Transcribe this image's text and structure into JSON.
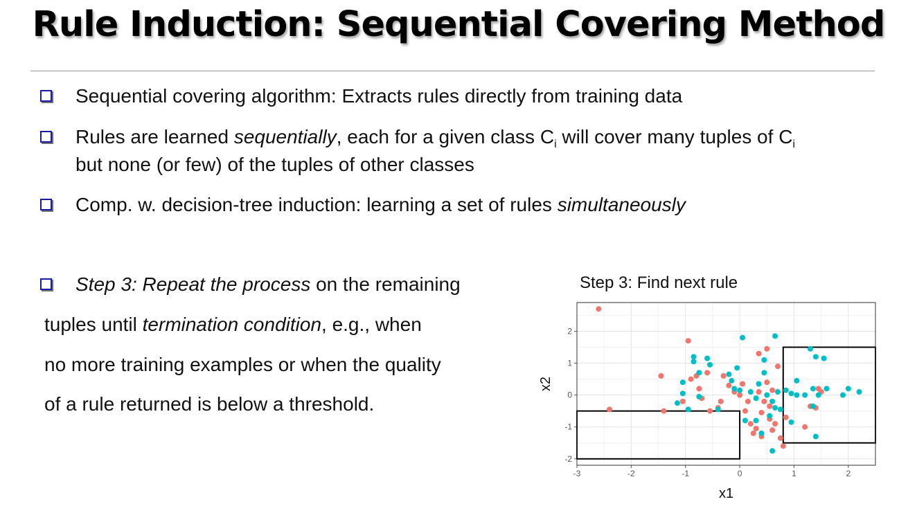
{
  "slide": {
    "title": "Rule Induction: Sequential Covering Method"
  },
  "bullets": [
    {
      "pre": "Sequential covering algorithm: Extracts rules directly from training data"
    },
    {
      "part1": "Rules are learned ",
      "em1": "sequentially",
      "part2": ", each for a given class C",
      "sub1": "i",
      "part3": " will cover many tuples of C",
      "sub2": "i",
      "line2": "but none (or few) of the tuples of other classes"
    },
    {
      "pre": "Comp. w. decision-tree induction: learning a set of rules ",
      "em": "simultaneously"
    }
  ],
  "step3": {
    "em_step": "Step 3: Repeat the process",
    "text1": " on the remaining",
    "line2_pre": "tuples until ",
    "line2_em": "termination condition",
    "line2_post": ", e.g., when",
    "line3": "no more training examples or when the quality",
    "line4": "of a rule returned is below a threshold."
  },
  "chart_data": {
    "type": "scatter",
    "title": "Step 3: Find next rule",
    "xlabel": "x1",
    "ylabel": "x2",
    "xlim": [
      -3.0,
      2.5
    ],
    "ylim": [
      -2.2,
      2.9
    ],
    "xticks": [
      -3,
      -2,
      -1,
      0,
      1,
      2
    ],
    "yticks": [
      -2,
      -1,
      0,
      1,
      2
    ],
    "grid": true,
    "colors": {
      "red": "#f0766d",
      "teal": "#00bfc4",
      "box": "#000000"
    },
    "series": [
      {
        "color": "red",
        "points": [
          [
            -2.6,
            2.7
          ],
          [
            -2.4,
            -0.45
          ],
          [
            -1.45,
            0.6
          ],
          [
            -1.4,
            -0.5
          ],
          [
            -1.05,
            -0.2
          ],
          [
            -0.95,
            1.7
          ],
          [
            -0.9,
            0.5
          ],
          [
            -0.8,
            0.6
          ],
          [
            -0.75,
            0.2
          ],
          [
            -0.7,
            -0.1
          ],
          [
            -0.6,
            0.7
          ],
          [
            -0.55,
            -0.5
          ],
          [
            -0.4,
            -0.4
          ],
          [
            -0.35,
            -0.2
          ],
          [
            -0.3,
            0.6
          ],
          [
            -0.2,
            0.3
          ],
          [
            -0.1,
            0.1
          ],
          [
            0.0,
            0.0
          ],
          [
            0.05,
            0.35
          ],
          [
            0.1,
            -0.5
          ],
          [
            0.15,
            -0.2
          ],
          [
            0.2,
            -0.9
          ],
          [
            0.25,
            -1.2
          ],
          [
            0.3,
            -1.05
          ],
          [
            0.35,
            0.1
          ],
          [
            0.35,
            1.3
          ],
          [
            0.4,
            -0.55
          ],
          [
            0.4,
            -1.3
          ],
          [
            0.45,
            -0.2
          ],
          [
            0.5,
            0.4
          ],
          [
            0.5,
            1.45
          ],
          [
            0.55,
            -0.75
          ],
          [
            0.55,
            -0.35
          ],
          [
            0.6,
            0.15
          ],
          [
            0.6,
            -1.1
          ],
          [
            0.65,
            -0.9
          ],
          [
            0.7,
            0.9
          ],
          [
            0.75,
            -1.35
          ],
          [
            0.8,
            -1.6
          ],
          [
            0.85,
            -0.7
          ],
          [
            1.2,
            -1.0
          ],
          [
            1.3,
            -0.35
          ],
          [
            1.4,
            -0.4
          ],
          [
            1.45,
            0.2
          ],
          [
            1.5,
            0.1
          ]
        ]
      },
      {
        "color": "teal",
        "points": [
          [
            -1.15,
            -0.25
          ],
          [
            -1.05,
            0.4
          ],
          [
            -1.05,
            0.05
          ],
          [
            -0.95,
            -0.45
          ],
          [
            -0.85,
            1.2
          ],
          [
            -0.85,
            1.05
          ],
          [
            -0.75,
            0.7
          ],
          [
            -0.75,
            -0.05
          ],
          [
            -0.6,
            1.15
          ],
          [
            -0.55,
            0.95
          ],
          [
            -0.4,
            -0.45
          ],
          [
            -0.2,
            0.65
          ],
          [
            -0.15,
            0.45
          ],
          [
            -0.1,
            0.2
          ],
          [
            -0.05,
            0.85
          ],
          [
            0.0,
            0.15
          ],
          [
            0.05,
            1.8
          ],
          [
            0.1,
            -0.8
          ],
          [
            0.2,
            0.1
          ],
          [
            0.3,
            -0.1
          ],
          [
            0.3,
            -0.8
          ],
          [
            0.35,
            0.35
          ],
          [
            0.4,
            -1.2
          ],
          [
            0.45,
            0.7
          ],
          [
            0.45,
            1.1
          ],
          [
            0.5,
            0.0
          ],
          [
            0.55,
            -0.65
          ],
          [
            0.6,
            -1.75
          ],
          [
            0.6,
            -0.2
          ],
          [
            0.65,
            -0.4
          ],
          [
            0.65,
            1.85
          ],
          [
            0.7,
            0.1
          ],
          [
            0.75,
            -0.45
          ],
          [
            0.85,
            0.15
          ],
          [
            0.95,
            0.05
          ],
          [
            0.95,
            -0.85
          ],
          [
            1.05,
            0.45
          ],
          [
            1.05,
            0.0
          ],
          [
            1.2,
            0.0
          ],
          [
            1.3,
            1.45
          ],
          [
            1.35,
            0.2
          ],
          [
            1.35,
            -0.35
          ],
          [
            1.4,
            -1.3
          ],
          [
            1.4,
            1.2
          ],
          [
            1.45,
            0.0
          ],
          [
            1.55,
            1.15
          ],
          [
            1.6,
            0.2
          ],
          [
            1.9,
            0.0
          ],
          [
            2.0,
            0.2
          ],
          [
            2.2,
            0.1
          ]
        ]
      }
    ],
    "rects": [
      {
        "x0": -3.0,
        "x1": 0.0,
        "y0": -2.0,
        "y1": -0.5
      },
      {
        "x0": 0.8,
        "x1": 2.5,
        "y0": -1.5,
        "y1": 1.5
      }
    ]
  }
}
